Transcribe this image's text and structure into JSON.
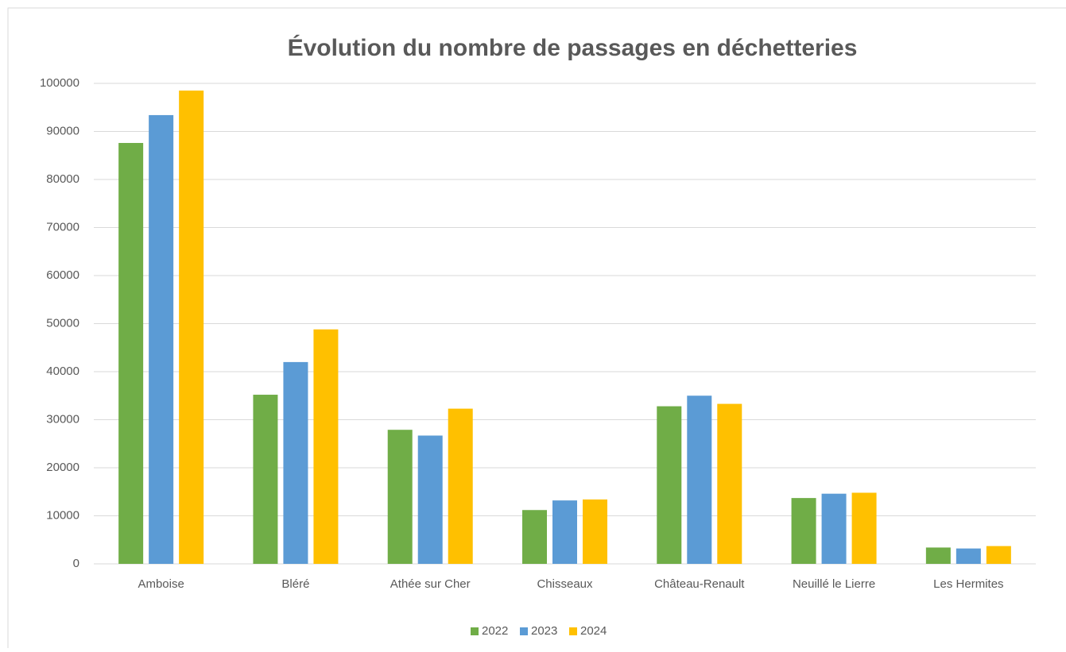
{
  "chart_data": {
    "type": "bar",
    "title": "Évolution du nombre de passages en déchetteries",
    "categories": [
      "Amboise",
      "Bléré",
      "Athée sur Cher",
      "Chisseaux",
      "Château-Renault",
      "Neuillé le Lierre",
      "Les Hermites"
    ],
    "series": [
      {
        "name": "2022",
        "color": "#70ad47",
        "values": [
          87600,
          35200,
          27900,
          11200,
          32800,
          13700,
          3400
        ]
      },
      {
        "name": "2023",
        "color": "#5b9bd5",
        "values": [
          93400,
          42000,
          26700,
          13200,
          35000,
          14600,
          3200
        ]
      },
      {
        "name": "2024",
        "color": "#ffc000",
        "values": [
          98500,
          48800,
          32300,
          13400,
          33300,
          14800,
          3700
        ]
      }
    ],
    "ylim": [
      0,
      100000
    ],
    "yticks": [
      0,
      10000,
      20000,
      30000,
      40000,
      50000,
      60000,
      70000,
      80000,
      90000,
      100000
    ],
    "grid": true,
    "legend": "bottom"
  }
}
